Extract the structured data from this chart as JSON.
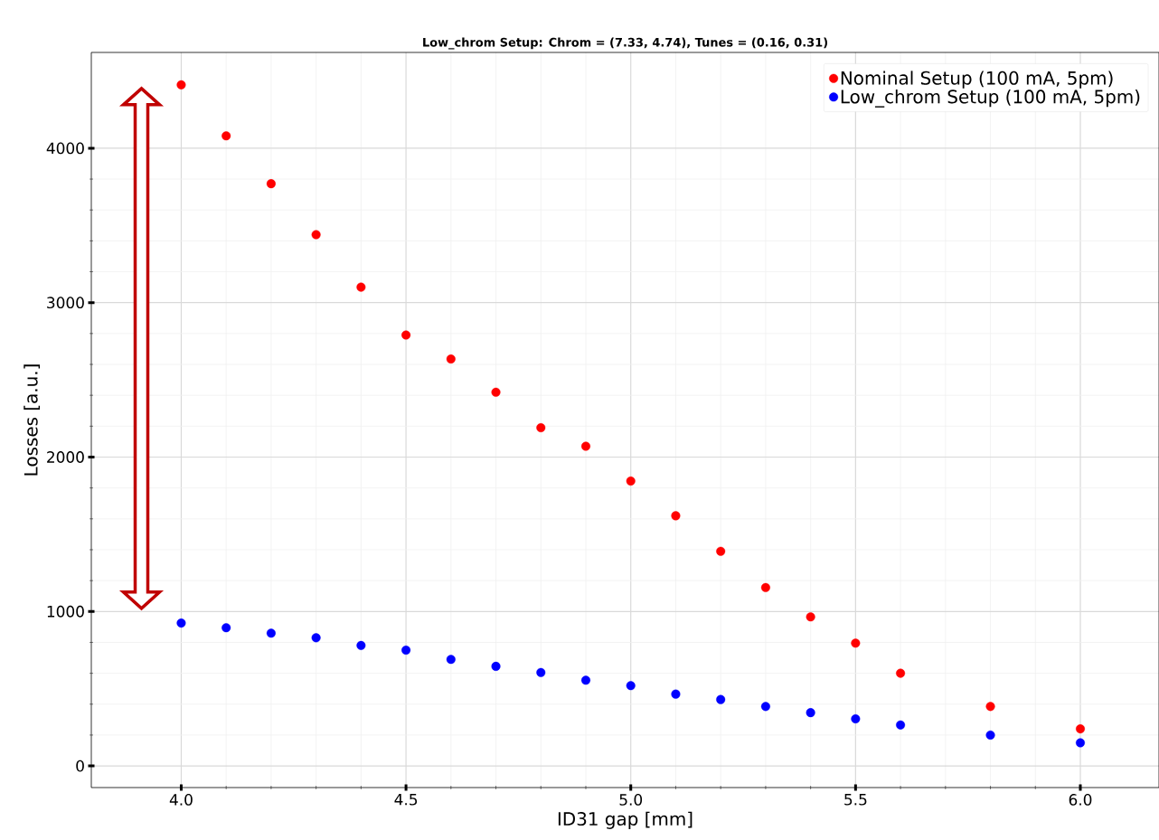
{
  "chart_data": {
    "type": "scatter",
    "title": "**Low_chrom Setup: Chrom = (7.33, 4.74), Tunes = (0.16, 0.31)**",
    "xlabel": "ID31 gap [mm]",
    "ylabel": "Losses [a.u.]",
    "x": [
      4.0,
      4.1,
      4.2,
      4.3,
      4.4,
      4.5,
      4.6,
      4.7,
      4.8,
      4.9,
      5.0,
      5.1,
      5.2,
      5.3,
      5.4,
      5.5,
      5.6,
      5.8,
      6.0
    ],
    "series": [
      {
        "name": "Nominal Setup (100 mA, 5pm)",
        "color": "#ff0000",
        "values": [
          4410,
          4080,
          3770,
          3440,
          3100,
          2790,
          2635,
          2420,
          2190,
          2070,
          1845,
          1620,
          1390,
          1155,
          965,
          795,
          600,
          385,
          240
        ]
      },
      {
        "name": "Low_chrom Setup (100 mA, 5pm)",
        "color": "#0000ff",
        "values": [
          925,
          895,
          860,
          830,
          780,
          750,
          690,
          645,
          605,
          555,
          520,
          465,
          430,
          385,
          345,
          305,
          265,
          200,
          150
        ]
      }
    ],
    "xlim": [
      3.8,
      6.175
    ],
    "ylim": [
      -140,
      4620
    ],
    "xticks": [
      {
        "value": 4,
        "label": "4.0"
      },
      {
        "value": 4.5,
        "label": "4.5"
      },
      {
        "value": 5,
        "label": "5.0"
      },
      {
        "value": 5.5,
        "label": "5.5"
      },
      {
        "value": 6,
        "label": "6.0"
      }
    ],
    "yticks": [
      0,
      1000,
      2000,
      3000,
      4000
    ],
    "grid": true,
    "legend": "top right",
    "marker": "circle"
  }
}
